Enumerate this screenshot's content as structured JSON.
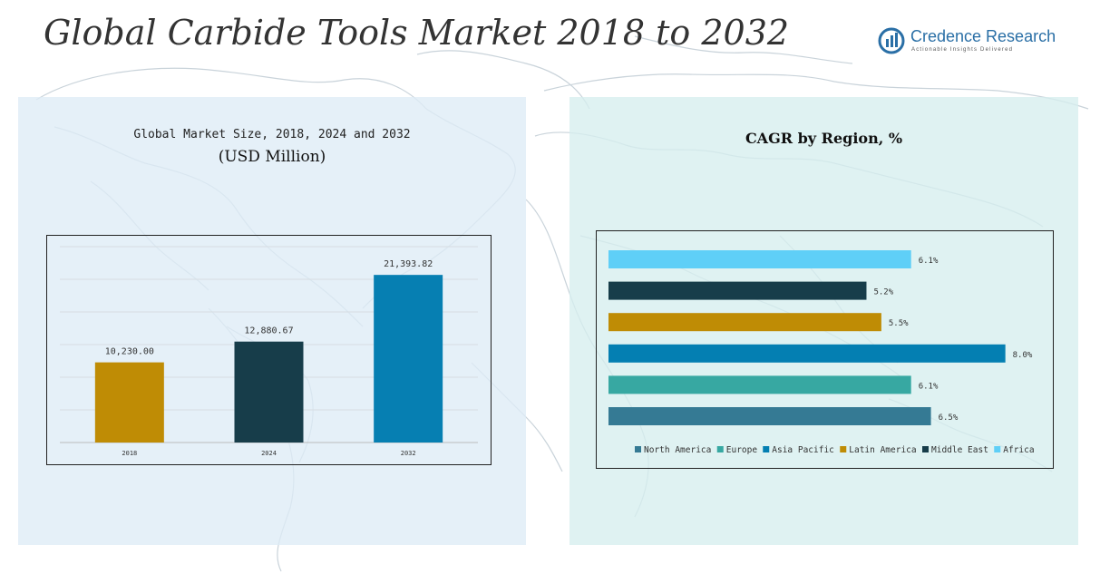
{
  "header": {
    "title": "Global Carbide Tools Market 2018 to 2032",
    "logo_name": "Credence Research",
    "logo_tagline": "Actionable Insights Delivered"
  },
  "colors": {
    "map_lines": "#c9d3da",
    "grid": "#d6dde2",
    "axis": "#bbbbbb"
  },
  "chart_data": [
    {
      "type": "bar",
      "title": "Global Market Size, 2018, 2024 and 2032",
      "subtitle": "(USD Million)",
      "categories": [
        "2018",
        "2024",
        "2032"
      ],
      "values": [
        10230.0,
        12880.67,
        21393.82
      ],
      "value_labels": [
        "10,230.00",
        "12,880.67",
        "21,393.82"
      ],
      "colors": [
        "#bf8c05",
        "#173d4a",
        "#067fb2"
      ],
      "ylim": [
        0,
        25000
      ],
      "grid": true,
      "gridline_count": 6
    },
    {
      "type": "bar",
      "orientation": "horizontal",
      "title": "CAGR by Region, %",
      "categories": [
        "North America",
        "Europe",
        "Asia Pacific",
        "Latin America",
        "Middle East",
        "Africa"
      ],
      "values": [
        6.5,
        6.1,
        8.0,
        5.5,
        5.2,
        6.1
      ],
      "value_labels": [
        "6.5%",
        "6.1%",
        "8.0%",
        "5.5%",
        "5.2%",
        "6.1%"
      ],
      "colors": [
        "#357a94",
        "#37a8a2",
        "#047fb2",
        "#bf8c05",
        "#173d4a",
        "#5fcff7"
      ],
      "xlim": [
        0,
        8.5
      ],
      "legend_position": "bottom"
    }
  ]
}
